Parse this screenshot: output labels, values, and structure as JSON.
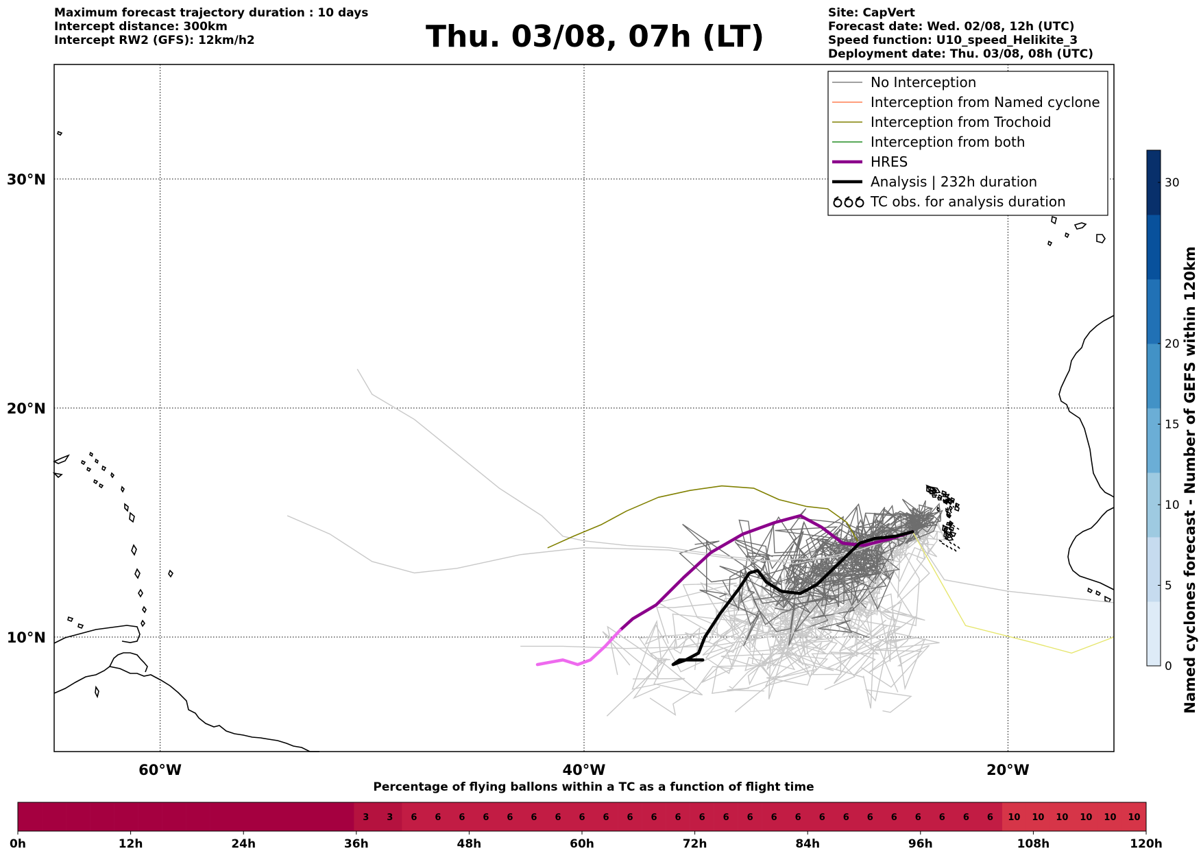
{
  "header": {
    "left": [
      "Maximum forecast trajectory duration : 10 days",
      "Intercept distance: 300km",
      "Intercept RW2 (GFS):  12km/h2"
    ],
    "title": "Thu. 03/08, 07h (LT)",
    "right": [
      "Site: CapVert",
      "Forecast date: Wed. 02/08, 12h (UTC)",
      "Speed function: U10_speed_Helikite_3",
      "Deployment date: Thu. 03/08, 08h (UTC)"
    ]
  },
  "map": {
    "lon_range": [
      -65,
      -15
    ],
    "lat_range": [
      5,
      35
    ],
    "grid_lons": [
      -60,
      -40,
      -20
    ],
    "grid_lats": [
      10,
      20,
      30
    ],
    "lon_labels": [
      "60°W",
      "40°W",
      "20°W"
    ],
    "lat_labels": [
      "10°N",
      "20°N",
      "30°N"
    ]
  },
  "legend": {
    "items": [
      {
        "label": "No Interception",
        "color": "#808080",
        "style": "line"
      },
      {
        "label": "Interception from Named cyclone",
        "color": "#ff7f50",
        "style": "line"
      },
      {
        "label": "Interception from Trochoid",
        "color": "#808000",
        "style": "line"
      },
      {
        "label": "Interception from both",
        "color": "#228b22",
        "style": "line"
      },
      {
        "label": "HRES",
        "color": "#8b008b",
        "style": "thick"
      },
      {
        "label": "Analysis | 232h duration",
        "color": "#000000",
        "style": "thick"
      },
      {
        "label": "TC obs. for analysis duration",
        "color": "#000000",
        "style": "tc"
      }
    ]
  },
  "colorbar": {
    "label": "Named cyclones forecast - Number of GEFS within 120km",
    "ticks": [
      0,
      5,
      10,
      15,
      20,
      30
    ],
    "max": 32,
    "colors": [
      "#deebf7",
      "#c6dbef",
      "#9ecae1",
      "#6baed6",
      "#4292c6",
      "#2171b5",
      "#08519c",
      "#08306b"
    ]
  },
  "percentage_bar": {
    "title": "Percentage of flying ballons within a TC as a function of flight time",
    "hours_total": 120,
    "hour_labels": [
      "0h",
      "12h",
      "24h",
      "36h",
      "48h",
      "60h",
      "72h",
      "84h",
      "96h",
      "108h",
      "120h"
    ],
    "segments": [
      {
        "value": "",
        "count": 14,
        "color": "#a50040"
      },
      {
        "value": "3",
        "count": 2,
        "color": "#b5123f"
      },
      {
        "value": "6",
        "count": 25,
        "color": "#c21c44"
      },
      {
        "value": "10",
        "count": 6,
        "color": "#d63548"
      }
    ]
  },
  "chart_data": {
    "type": "line",
    "xlabel": "",
    "ylabel": "",
    "x_unit": "longitude (deg)",
    "y_unit": "latitude (deg)",
    "series": [
      {
        "name": "HRES",
        "color": "#8b008b",
        "points": [
          [
            -24.5,
            14.6
          ],
          [
            -25.5,
            14.3
          ],
          [
            -26.8,
            14.0
          ],
          [
            -27.8,
            14.1
          ],
          [
            -28.8,
            14.8
          ],
          [
            -29.8,
            15.3
          ],
          [
            -31.0,
            15.0
          ],
          [
            -32.5,
            14.5
          ],
          [
            -34.0,
            13.7
          ],
          [
            -35.3,
            12.6
          ],
          [
            -36.6,
            11.4
          ],
          [
            -37.7,
            10.8
          ],
          [
            -38.3,
            10.3
          ]
        ]
      },
      {
        "name": "HRES (pink)",
        "color": "#ee6aee",
        "points": [
          [
            -38.3,
            10.3
          ],
          [
            -39.0,
            9.6
          ],
          [
            -39.7,
            9.0
          ],
          [
            -40.3,
            8.8
          ],
          [
            -41.0,
            9.0
          ],
          [
            -41.6,
            8.9
          ],
          [
            -42.2,
            8.8
          ]
        ]
      },
      {
        "name": "Analysis | 232h duration",
        "color": "#000000",
        "points": [
          [
            -24.5,
            14.6
          ],
          [
            -25.3,
            14.4
          ],
          [
            -26.3,
            14.3
          ],
          [
            -27.0,
            14.1
          ],
          [
            -28.0,
            13.2
          ],
          [
            -29.0,
            12.3
          ],
          [
            -29.8,
            11.9
          ],
          [
            -30.7,
            12.0
          ],
          [
            -31.4,
            12.4
          ],
          [
            -31.8,
            12.9
          ],
          [
            -32.2,
            12.8
          ],
          [
            -32.7,
            12.1
          ],
          [
            -33.6,
            11.0
          ],
          [
            -34.3,
            10.0
          ],
          [
            -34.6,
            9.3
          ],
          [
            -35.2,
            9.0
          ],
          [
            -35.8,
            8.8
          ],
          [
            -35.5,
            9.0
          ],
          [
            -35.0,
            9.0
          ],
          [
            -34.4,
            9.0
          ]
        ]
      },
      {
        "name": "Interception from Trochoid",
        "color": "#808000",
        "points": [
          [
            -41.7,
            13.9
          ],
          [
            -40.5,
            14.4
          ],
          [
            -39.2,
            14.9
          ],
          [
            -38.0,
            15.5
          ],
          [
            -36.5,
            16.1
          ],
          [
            -35.0,
            16.4
          ],
          [
            -33.5,
            16.6
          ],
          [
            -32.0,
            16.5
          ],
          [
            -30.8,
            16.0
          ],
          [
            -29.5,
            15.7
          ],
          [
            -28.5,
            15.6
          ],
          [
            -27.6,
            15.0
          ],
          [
            -27.1,
            14.2
          ]
        ]
      }
    ]
  }
}
